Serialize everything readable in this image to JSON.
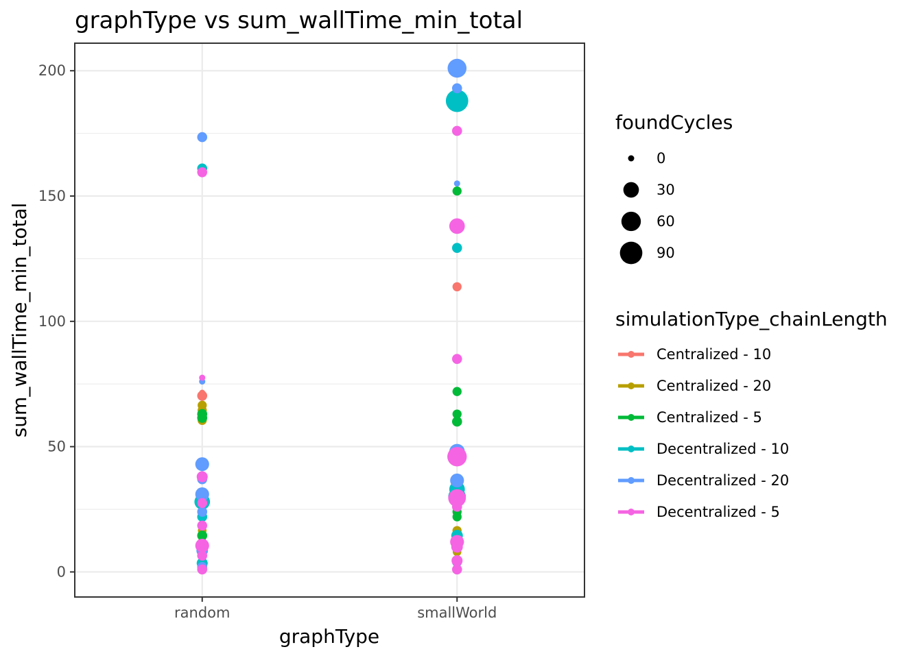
{
  "chart_data": {
    "type": "scatter",
    "title": "graphType  vs  sum_wallTime_min_total",
    "xlabel": "graphType",
    "ylabel": "sum_wallTime_min_total",
    "categories": [
      "random",
      "smallWorld"
    ],
    "y_ticks": [
      0,
      50,
      100,
      150,
      200
    ],
    "ylim": [
      -10,
      211
    ],
    "grid": true,
    "size_legend": {
      "title": "foundCycles",
      "values": [
        0,
        30,
        60,
        90
      ]
    },
    "color_legend": {
      "title": "simulationType_chainLength",
      "placement": "right"
    },
    "series": [
      {
        "name": "Centralized - 10",
        "color": "#F8766D",
        "points": [
          {
            "x": "random",
            "y": 71.5,
            "size": 0
          },
          {
            "x": "random",
            "y": 70.3,
            "size": 5
          },
          {
            "x": "random",
            "y": 8.0,
            "size": 2
          },
          {
            "x": "random",
            "y": 3.0,
            "size": 0
          },
          {
            "x": "smallWorld",
            "y": 113.8,
            "size": 3
          },
          {
            "x": "smallWorld",
            "y": 10.0,
            "size": 2
          },
          {
            "x": "smallWorld",
            "y": 5.0,
            "size": 0
          }
        ]
      },
      {
        "name": "Centralized - 20",
        "color": "#B79F00",
        "points": [
          {
            "x": "random",
            "y": 66.5,
            "size": 3
          },
          {
            "x": "random",
            "y": 64.5,
            "size": 3
          },
          {
            "x": "random",
            "y": 60.5,
            "size": 3
          },
          {
            "x": "random",
            "y": 16.5,
            "size": 2
          },
          {
            "x": "random",
            "y": 12.0,
            "size": 2
          },
          {
            "x": "random",
            "y": 4.0,
            "size": 0
          },
          {
            "x": "smallWorld",
            "y": 16.5,
            "size": 3
          },
          {
            "x": "smallWorld",
            "y": 14.5,
            "size": 3
          },
          {
            "x": "smallWorld",
            "y": 8.0,
            "size": 2
          },
          {
            "x": "smallWorld",
            "y": 1.8,
            "size": 0
          }
        ]
      },
      {
        "name": "Centralized - 5",
        "color": "#00BA38",
        "points": [
          {
            "x": "random",
            "y": 63.0,
            "size": 5
          },
          {
            "x": "random",
            "y": 61.5,
            "size": 5
          },
          {
            "x": "random",
            "y": 22.0,
            "size": 3
          },
          {
            "x": "random",
            "y": 14.5,
            "size": 5
          },
          {
            "x": "random",
            "y": 4.0,
            "size": 3
          },
          {
            "x": "random",
            "y": 2.0,
            "size": 0
          },
          {
            "x": "smallWorld",
            "y": 152.0,
            "size": 3
          },
          {
            "x": "smallWorld",
            "y": 72.0,
            "size": 3
          },
          {
            "x": "smallWorld",
            "y": 63.0,
            "size": 3
          },
          {
            "x": "smallWorld",
            "y": 60.0,
            "size": 5
          },
          {
            "x": "smallWorld",
            "y": 24.0,
            "size": 3
          },
          {
            "x": "smallWorld",
            "y": 22.0,
            "size": 3
          },
          {
            "x": "smallWorld",
            "y": 14.0,
            "size": 5
          }
        ]
      },
      {
        "name": "Decentralized - 10",
        "color": "#00BFC4",
        "points": [
          {
            "x": "random",
            "y": 161.0,
            "size": 5
          },
          {
            "x": "random",
            "y": 28.0,
            "size": 30
          },
          {
            "x": "random",
            "y": 22.0,
            "size": 5
          },
          {
            "x": "random",
            "y": 3.5,
            "size": 8
          },
          {
            "x": "smallWorld",
            "y": 188.0,
            "size": 90
          },
          {
            "x": "smallWorld",
            "y": 129.3,
            "size": 5
          },
          {
            "x": "smallWorld",
            "y": 33.0,
            "size": 30
          },
          {
            "x": "smallWorld",
            "y": 30.0,
            "size": 45
          },
          {
            "x": "smallWorld",
            "y": 14.5,
            "size": 10
          }
        ]
      },
      {
        "name": "Decentralized - 20",
        "color": "#619CFF",
        "points": [
          {
            "x": "random",
            "y": 173.5,
            "size": 5
          },
          {
            "x": "random",
            "y": 76.0,
            "size": 0
          },
          {
            "x": "random",
            "y": 43.0,
            "size": 20
          },
          {
            "x": "random",
            "y": 37.0,
            "size": 5
          },
          {
            "x": "random",
            "y": 31.0,
            "size": 20
          },
          {
            "x": "random",
            "y": 24.0,
            "size": 5
          },
          {
            "x": "random",
            "y": 8.5,
            "size": 10
          },
          {
            "x": "random",
            "y": 2.0,
            "size": 5
          },
          {
            "x": "smallWorld",
            "y": 201.0,
            "size": 55
          },
          {
            "x": "smallWorld",
            "y": 193.0,
            "size": 5
          },
          {
            "x": "smallWorld",
            "y": 155.0,
            "size": 0
          },
          {
            "x": "smallWorld",
            "y": 48.0,
            "size": 30
          },
          {
            "x": "smallWorld",
            "y": 36.5,
            "size": 20
          },
          {
            "x": "smallWorld",
            "y": 4.0,
            "size": 5
          }
        ]
      },
      {
        "name": "Decentralized - 5",
        "color": "#F564E3",
        "points": [
          {
            "x": "random",
            "y": 159.5,
            "size": 5
          },
          {
            "x": "random",
            "y": 77.5,
            "size": 0
          },
          {
            "x": "random",
            "y": 38.0,
            "size": 8
          },
          {
            "x": "random",
            "y": 27.5,
            "size": 5
          },
          {
            "x": "random",
            "y": 18.5,
            "size": 5
          },
          {
            "x": "random",
            "y": 10.5,
            "size": 20
          },
          {
            "x": "random",
            "y": 6.5,
            "size": 5
          },
          {
            "x": "random",
            "y": 1.0,
            "size": 5
          },
          {
            "x": "smallWorld",
            "y": 176.0,
            "size": 5
          },
          {
            "x": "smallWorld",
            "y": 138.0,
            "size": 30
          },
          {
            "x": "smallWorld",
            "y": 85.0,
            "size": 5
          },
          {
            "x": "smallWorld",
            "y": 46.0,
            "size": 60
          },
          {
            "x": "smallWorld",
            "y": 29.5,
            "size": 45
          },
          {
            "x": "smallWorld",
            "y": 26.0,
            "size": 5
          },
          {
            "x": "smallWorld",
            "y": 12.0,
            "size": 20
          },
          {
            "x": "smallWorld",
            "y": 10.0,
            "size": 10
          },
          {
            "x": "smallWorld",
            "y": 4.5,
            "size": 8
          },
          {
            "x": "smallWorld",
            "y": 1.0,
            "size": 5
          }
        ]
      }
    ]
  }
}
